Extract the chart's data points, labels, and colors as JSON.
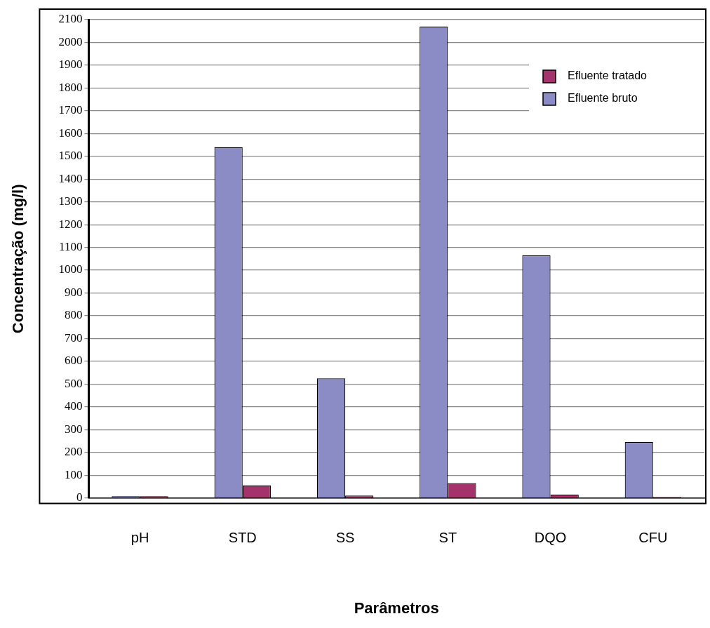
{
  "chart_data": {
    "type": "bar",
    "xlabel": "Parâmetros",
    "ylabel": "Concentração (mg/l)",
    "categories": [
      "pH",
      "STD",
      "SS",
      "ST",
      "DQO",
      "CFU"
    ],
    "series": [
      {
        "name": "Efluente bruto",
        "color": "#8b8bc6",
        "values": [
          7,
          1540,
          525,
          2070,
          1065,
          245
        ]
      },
      {
        "name": "Efluente tratado",
        "color": "#a3336a",
        "values": [
          7,
          55,
          10,
          65,
          15,
          4
        ]
      }
    ],
    "ylim": [
      0,
      2100
    ],
    "yticks": [
      0,
      100,
      200,
      300,
      400,
      500,
      600,
      700,
      800,
      900,
      1000,
      1100,
      1200,
      1300,
      1400,
      1500,
      1600,
      1700,
      1800,
      1900,
      2000,
      2100
    ],
    "grid": "y",
    "legend": "top right"
  }
}
